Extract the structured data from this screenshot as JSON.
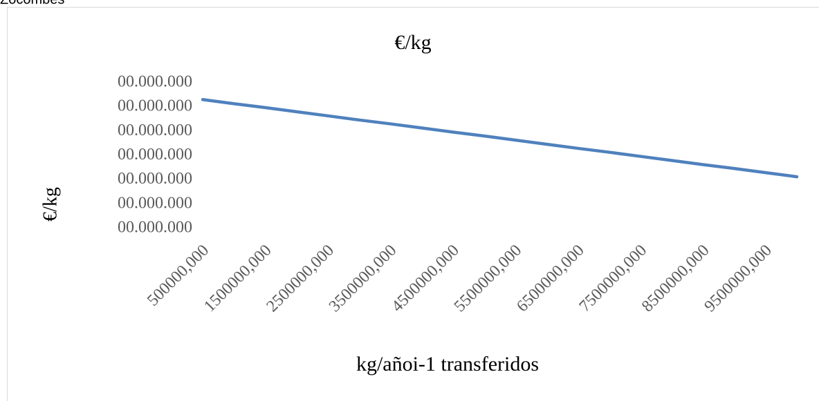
{
  "header": "Zocombes",
  "chart_data": {
    "type": "line",
    "title": "€/kg",
    "y_label": "€/kg",
    "x_label": "kg/añoi-1  transferidos",
    "categories": [
      "500000,000",
      null,
      "1500000,000",
      null,
      "2500000,000",
      null,
      "3500000,000",
      null,
      "4500000,000",
      null,
      "5500000,000",
      null,
      "6500000,000",
      null,
      "7500000,000",
      null,
      "8500000,000",
      null,
      "9500000,000",
      null
    ],
    "series": [
      {
        "name": "€/kg",
        "color": "#4f81bd",
        "values": [
          5.31,
          5.14,
          4.98,
          4.81,
          4.64,
          4.47,
          4.31,
          4.14,
          3.97,
          3.81,
          3.64,
          3.47,
          3.3,
          3.14,
          2.97,
          2.8,
          2.63,
          2.47,
          2.3,
          2.13
        ]
      }
    ],
    "ylim": [
      0,
      6
    ],
    "yticks": [
      {
        "value": 0,
        "label": "00.000.000"
      },
      {
        "value": 1,
        "label": "00.000.000"
      },
      {
        "value": 2,
        "label": "00.000.000"
      },
      {
        "value": 3,
        "label": "00.000.000"
      },
      {
        "value": 4,
        "label": "00.000.000"
      },
      {
        "value": 5,
        "label": "00.000.000"
      },
      {
        "value": 6,
        "label": "00.000.000"
      }
    ],
    "grid": false
  }
}
